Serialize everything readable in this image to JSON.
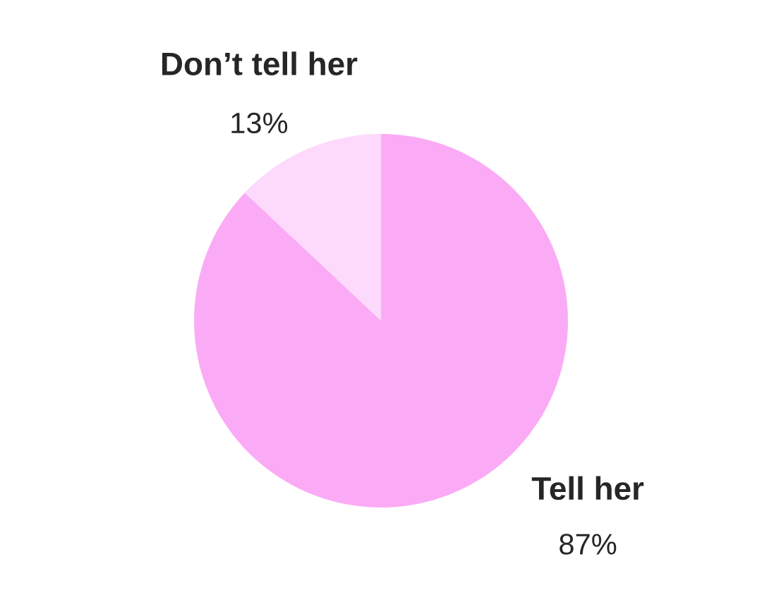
{
  "chart_data": {
    "type": "pie",
    "categories": [
      "Don’t tell her",
      "Tell her"
    ],
    "values": [
      13,
      87
    ],
    "colors": [
      "#fdd9fb",
      "#fbabf5"
    ],
    "value_labels": [
      "13%",
      "87%"
    ]
  }
}
